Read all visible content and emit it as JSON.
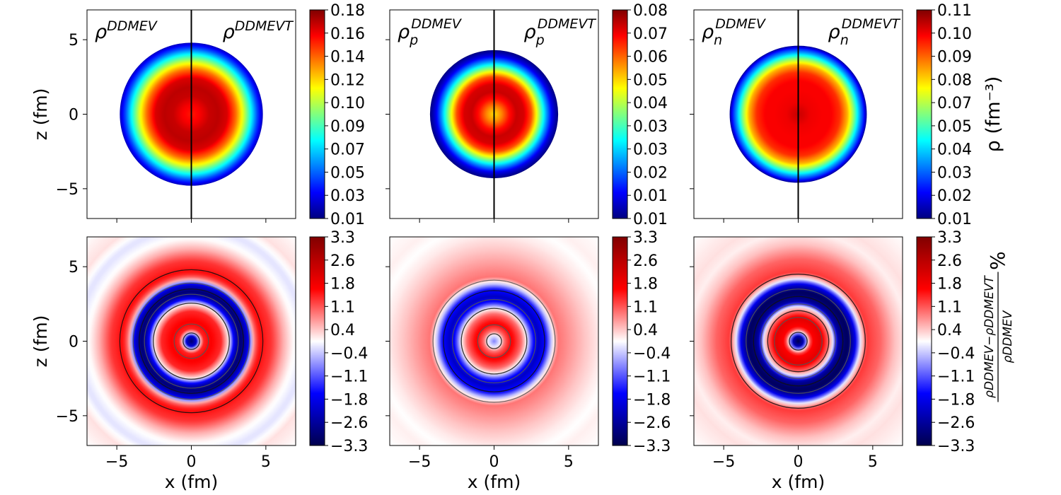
{
  "figure": {
    "axis_xlabel": "x (fm)",
    "axis_ylabel": "z (fm)",
    "x_ticks": [
      -5,
      0,
      5
    ],
    "y_ticks": [
      5,
      0,
      -5
    ],
    "x_range": [
      -7,
      7
    ],
    "y_range": [
      -7,
      7
    ]
  },
  "chart_data": [
    {
      "type": "heatmap",
      "row": 0,
      "col": 0,
      "left_label": {
        "base": "ρ",
        "sup": "DDMEV",
        "sub": ""
      },
      "right_label": {
        "base": "ρ",
        "sup": "DDMEVT",
        "sub": ""
      },
      "xlabel": "",
      "ylabel": "z (fm)",
      "radius_fm": 4.8,
      "divider": true,
      "contours": [],
      "colorbar": {
        "cmap": "jet",
        "ticks": [
          "0.18",
          "0.16",
          "0.14",
          "0.12",
          "0.10",
          "0.09",
          "0.07",
          "0.05",
          "0.03",
          "0.01"
        ],
        "vmin": 0.01,
        "vmax": 0.18,
        "label": ""
      },
      "profile": [
        [
          0,
          0.155
        ],
        [
          0.6,
          0.16
        ],
        [
          1.2,
          0.168
        ],
        [
          1.8,
          0.17
        ],
        [
          2.4,
          0.165
        ],
        [
          3.0,
          0.14
        ],
        [
          3.5,
          0.11
        ],
        [
          4.0,
          0.075
        ],
        [
          4.4,
          0.045
        ],
        [
          4.8,
          0.02
        ]
      ]
    },
    {
      "type": "heatmap",
      "row": 0,
      "col": 1,
      "left_label": {
        "base": "ρ",
        "sup": "DDMEV",
        "sub": "p"
      },
      "right_label": {
        "base": "ρ",
        "sup": "DDMEVT",
        "sub": "p"
      },
      "xlabel": "",
      "ylabel": "",
      "radius_fm": 4.3,
      "divider": true,
      "contours": [],
      "colorbar": {
        "cmap": "jet",
        "ticks": [
          "0.08",
          "0.07",
          "0.06",
          "0.05",
          "0.04",
          "0.03",
          "0.03",
          "0.02",
          "0.01",
          "0.01"
        ],
        "vmin": 0.01,
        "vmax": 0.08,
        "label": ""
      },
      "profile": [
        [
          0,
          0.056
        ],
        [
          0.5,
          0.062
        ],
        [
          1.0,
          0.07
        ],
        [
          1.5,
          0.075
        ],
        [
          2.0,
          0.074
        ],
        [
          2.5,
          0.066
        ],
        [
          3.0,
          0.048
        ],
        [
          3.5,
          0.03
        ],
        [
          3.9,
          0.017
        ],
        [
          4.3,
          0.01
        ]
      ]
    },
    {
      "type": "heatmap",
      "row": 0,
      "col": 2,
      "left_label": {
        "base": "ρ",
        "sup": "DDMEV",
        "sub": "n"
      },
      "right_label": {
        "base": "ρ",
        "sup": "DDMEVT",
        "sub": "n"
      },
      "xlabel": "",
      "ylabel": "",
      "radius_fm": 4.6,
      "divider": true,
      "contours": [],
      "colorbar": {
        "cmap": "jet",
        "ticks": [
          "0.11",
          "0.10",
          "0.09",
          "0.08",
          "0.07",
          "0.05",
          "0.04",
          "0.03",
          "0.02",
          "0.01"
        ],
        "vmin": 0.01,
        "vmax": 0.11,
        "label": "ρ (fm⁻³)"
      },
      "profile": [
        [
          0,
          0.103
        ],
        [
          0.8,
          0.099
        ],
        [
          1.6,
          0.098
        ],
        [
          2.2,
          0.098
        ],
        [
          2.8,
          0.093
        ],
        [
          3.3,
          0.08
        ],
        [
          3.7,
          0.062
        ],
        [
          4.1,
          0.04
        ],
        [
          4.4,
          0.025
        ],
        [
          4.6,
          0.012
        ]
      ]
    },
    {
      "type": "heatmap",
      "row": 1,
      "col": 0,
      "left_label": null,
      "right_label": null,
      "xlabel": "x (fm)",
      "ylabel": "z (fm)",
      "radius_fm": null,
      "divider": false,
      "contours": [
        0.55,
        1.15,
        2.55,
        3.15,
        3.5,
        3.9,
        4.8
      ],
      "colorbar": {
        "cmap": "seismic",
        "ticks": [
          "3.3",
          "2.6",
          "1.8",
          "1.1",
          "0.4",
          "-0.4",
          "-1.1",
          "-1.8",
          "-2.6",
          "-3.3"
        ],
        "vmin": -3.3,
        "vmax": 3.3,
        "label": ""
      },
      "profile": [
        [
          0,
          -3.0
        ],
        [
          0.35,
          -2.0
        ],
        [
          0.55,
          0
        ],
        [
          0.8,
          1.4
        ],
        [
          1.3,
          1.7
        ],
        [
          2.0,
          1.4
        ],
        [
          2.55,
          0
        ],
        [
          2.9,
          -2.0
        ],
        [
          3.3,
          -3.0
        ],
        [
          3.8,
          -2.0
        ],
        [
          4.2,
          0.8
        ],
        [
          4.6,
          1.6
        ],
        [
          5.4,
          1.3
        ],
        [
          6.2,
          0.5
        ],
        [
          6.8,
          0.05
        ],
        [
          7.6,
          -0.2
        ],
        [
          8.5,
          0.2
        ],
        [
          10,
          0
        ]
      ]
    },
    {
      "type": "heatmap",
      "row": 1,
      "col": 1,
      "left_label": null,
      "right_label": null,
      "xlabel": "x (fm)",
      "ylabel": "",
      "radius_fm": null,
      "divider": false,
      "contours": [
        0.5,
        1.1,
        2.2,
        2.8,
        3.4,
        4.1
      ],
      "colorbar": {
        "cmap": "seismic",
        "ticks": [
          "3.3",
          "2.6",
          "1.8",
          "1.1",
          "0.4",
          "-0.4",
          "-1.1",
          "-1.8",
          "-2.6",
          "-3.3"
        ],
        "vmin": -3.3,
        "vmax": 3.3,
        "label": ""
      },
      "profile": [
        [
          0,
          -0.8
        ],
        [
          0.45,
          0
        ],
        [
          0.7,
          1.0
        ],
        [
          1.2,
          1.7
        ],
        [
          1.8,
          1.0
        ],
        [
          2.2,
          0
        ],
        [
          2.6,
          -1.5
        ],
        [
          3.0,
          -2.2
        ],
        [
          3.5,
          -1.5
        ],
        [
          3.95,
          0
        ],
        [
          4.3,
          0.9
        ],
        [
          5.0,
          0.7
        ],
        [
          6.0,
          0.4
        ],
        [
          7.0,
          0.15
        ],
        [
          7.8,
          0
        ],
        [
          8.5,
          0.1
        ],
        [
          10,
          0
        ]
      ]
    },
    {
      "type": "heatmap",
      "row": 1,
      "col": 2,
      "left_label": null,
      "right_label": null,
      "xlabel": "x (fm)",
      "ylabel": "",
      "radius_fm": null,
      "divider": false,
      "contours": [
        0.6,
        1.6,
        2.05,
        2.5,
        3.0,
        3.5,
        4.5
      ],
      "colorbar": {
        "cmap": "seismic",
        "ticks": [
          "3.3",
          "2.6",
          "1.8",
          "1.1",
          "0.4",
          "-0.4",
          "-1.1",
          "-1.8",
          "-2.6",
          "-3.3"
        ],
        "vmin": -3.3,
        "vmax": 3.3,
        "label": "ρDDMEV−ρDDMEVT / ρDDMEV %"
      },
      "profile": [
        [
          0,
          -3.3
        ],
        [
          0.35,
          -2.3
        ],
        [
          0.6,
          0
        ],
        [
          0.9,
          1.6
        ],
        [
          1.5,
          2.0
        ],
        [
          2.0,
          1.0
        ],
        [
          2.3,
          0
        ],
        [
          2.7,
          -2.6
        ],
        [
          3.3,
          -3.2
        ],
        [
          3.8,
          -2.0
        ],
        [
          4.2,
          0
        ],
        [
          4.6,
          1.3
        ],
        [
          5.5,
          1.0
        ],
        [
          6.5,
          0.4
        ],
        [
          7.3,
          0.1
        ],
        [
          8.0,
          0.2
        ],
        [
          10,
          0
        ]
      ]
    }
  ]
}
